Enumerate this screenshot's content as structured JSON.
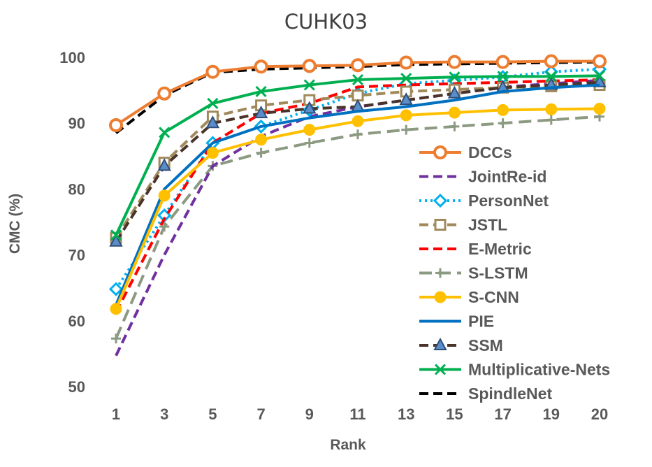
{
  "chart_data": {
    "type": "line",
    "title": "CUHK03",
    "xlabel": "Rank",
    "ylabel": "CMC (%)",
    "ylim": [
      50,
      100
    ],
    "yticks": [
      50,
      60,
      70,
      80,
      90,
      100
    ],
    "categories": [
      "1",
      "3",
      "5",
      "7",
      "9",
      "11",
      "13",
      "15",
      "17",
      "19",
      "20"
    ],
    "grid": false,
    "legend": "right",
    "series": [
      {
        "name": "DCCs",
        "color": "#ED7D31",
        "dash": "solid",
        "marker": "circle-open",
        "values": [
          89.7,
          94.5,
          97.8,
          98.6,
          98.7,
          98.8,
          99.2,
          99.3,
          99.3,
          99.4,
          99.4
        ]
      },
      {
        "name": "JointRe-id",
        "color": "#7030A0",
        "dash": "dash",
        "marker": "none",
        "values": [
          54.7,
          70.0,
          83.5,
          88.0,
          91.0,
          92.5,
          93.5,
          94.5,
          95.5,
          96.0,
          96.5
        ]
      },
      {
        "name": "PersonNet",
        "color": "#00B0F0",
        "dash": "dot",
        "marker": "diamond-open",
        "values": [
          64.8,
          76.0,
          87.0,
          89.5,
          92.0,
          94.5,
          96.0,
          96.5,
          97.0,
          97.8,
          98.2
        ]
      },
      {
        "name": "JSTL",
        "color": "#A0895A",
        "dash": "dash",
        "marker": "square-open",
        "values": [
          72.6,
          84.0,
          91.0,
          92.7,
          93.5,
          94.2,
          94.8,
          95.1,
          95.4,
          95.6,
          95.8
        ]
      },
      {
        "name": "E-Metric",
        "color": "#FF0000",
        "dash": "dash",
        "marker": "none",
        "values": [
          61.3,
          75.5,
          87.0,
          91.5,
          93.0,
          95.5,
          95.8,
          96.0,
          96.2,
          96.4,
          96.6
        ]
      },
      {
        "name": "S-LSTM",
        "color": "#8C9A82",
        "dash": "longdash",
        "marker": "plus",
        "values": [
          57.3,
          74.3,
          83.5,
          85.5,
          87.0,
          88.3,
          89.0,
          89.5,
          90.0,
          90.5,
          91.0
        ]
      },
      {
        "name": "S-CNN",
        "color": "#FFC000",
        "dash": "solid",
        "marker": "circle-filled",
        "values": [
          61.8,
          79.0,
          85.5,
          87.5,
          89.0,
          90.3,
          91.2,
          91.6,
          92.0,
          92.1,
          92.2
        ]
      },
      {
        "name": "PIE",
        "color": "#0070C0",
        "dash": "solid",
        "marker": "none",
        "values": [
          62.4,
          80.0,
          87.0,
          89.5,
          90.8,
          91.8,
          92.5,
          93.5,
          94.8,
          95.4,
          95.8
        ]
      },
      {
        "name": "SSM",
        "color": "#4A3328",
        "dash": "dash",
        "marker": "triangle",
        "values": [
          72.0,
          83.5,
          90.0,
          91.5,
          92.2,
          92.5,
          93.5,
          94.5,
          95.4,
          95.8,
          96.2
        ]
      },
      {
        "name": "Multiplicative-Nets",
        "color": "#00B050",
        "dash": "solid",
        "marker": "x",
        "values": [
          73.0,
          88.6,
          93.0,
          94.8,
          95.8,
          96.6,
          96.8,
          97.0,
          97.1,
          97.1,
          97.2
        ]
      },
      {
        "name": "SpindleNet",
        "color": "#000000",
        "dash": "dash",
        "marker": "none",
        "values": [
          88.5,
          94.2,
          97.7,
          98.2,
          98.4,
          98.6,
          98.9,
          99.0,
          99.1,
          99.2,
          99.3
        ]
      }
    ]
  }
}
